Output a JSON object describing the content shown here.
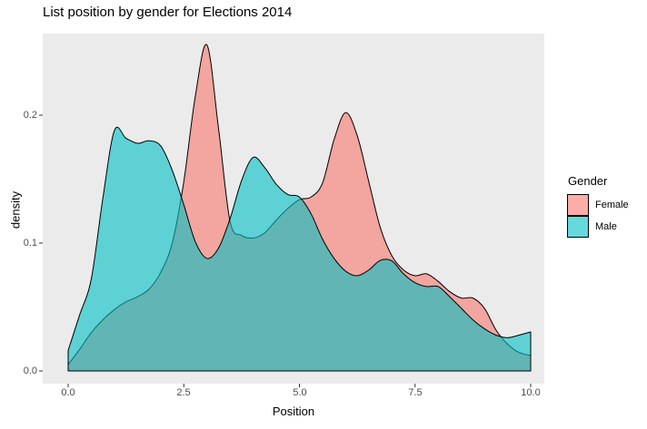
{
  "chart_data": {
    "type": "area",
    "subtype": "density",
    "title": "List position by gender for Elections 2014",
    "xlabel": "Position",
    "ylabel": "density",
    "panel_bg": "#EBEBEB",
    "grid": false,
    "stroke_color": "#000000",
    "tick_color": "#333333",
    "axis_text_color": "#4D4D4D",
    "fill_opacity": 0.6,
    "xlim": [
      -0.55,
      10.3
    ],
    "ylim": [
      -0.01,
      0.264
    ],
    "x_ticks": [
      0,
      2.5,
      5,
      7.5,
      10
    ],
    "x_tick_labels": [
      "0.0",
      "2.5",
      "5.0",
      "7.5",
      "10.0"
    ],
    "y_ticks": [
      0,
      0.1,
      0.2
    ],
    "y_tick_labels": [
      "0.0",
      "0.1",
      "0.2"
    ],
    "legend": {
      "title": "Gender",
      "position": "right",
      "entries": [
        {
          "label": "Female",
          "color": "#F8766D"
        },
        {
          "label": "Male",
          "color": "#00BFC4"
        }
      ]
    },
    "x": [
      0,
      0.25,
      0.5,
      0.75,
      1,
      1.25,
      1.5,
      1.75,
      2,
      2.25,
      2.5,
      2.75,
      3,
      3.25,
      3.5,
      3.75,
      4,
      4.25,
      4.5,
      4.75,
      5,
      5.25,
      5.5,
      5.75,
      6,
      6.25,
      6.5,
      6.75,
      7,
      7.25,
      7.5,
      7.75,
      8,
      8.25,
      8.5,
      8.75,
      9,
      9.25,
      9.5,
      9.75,
      10
    ],
    "series": [
      {
        "name": "Female",
        "color": "#F8766D",
        "values": [
          0.005,
          0.017,
          0.03,
          0.04,
          0.048,
          0.054,
          0.058,
          0.064,
          0.077,
          0.1,
          0.148,
          0.215,
          0.255,
          0.19,
          0.117,
          0.106,
          0.104,
          0.108,
          0.118,
          0.127,
          0.134,
          0.136,
          0.147,
          0.181,
          0.202,
          0.184,
          0.148,
          0.112,
          0.09,
          0.079,
          0.0745,
          0.076,
          0.07,
          0.062,
          0.057,
          0.057,
          0.049,
          0.032,
          0.021,
          0.0145,
          0.012
        ]
      },
      {
        "name": "Male",
        "color": "#00BFC4",
        "values": [
          0.016,
          0.044,
          0.072,
          0.135,
          0.188,
          0.182,
          0.178,
          0.18,
          0.176,
          0.157,
          0.13,
          0.101,
          0.088,
          0.096,
          0.119,
          0.149,
          0.167,
          0.159,
          0.146,
          0.138,
          0.136,
          0.123,
          0.103,
          0.088,
          0.078,
          0.0745,
          0.079,
          0.0865,
          0.086,
          0.076,
          0.069,
          0.066,
          0.066,
          0.058,
          0.049,
          0.04,
          0.033,
          0.028,
          0.026,
          0.028,
          0.0305
        ]
      }
    ]
  }
}
